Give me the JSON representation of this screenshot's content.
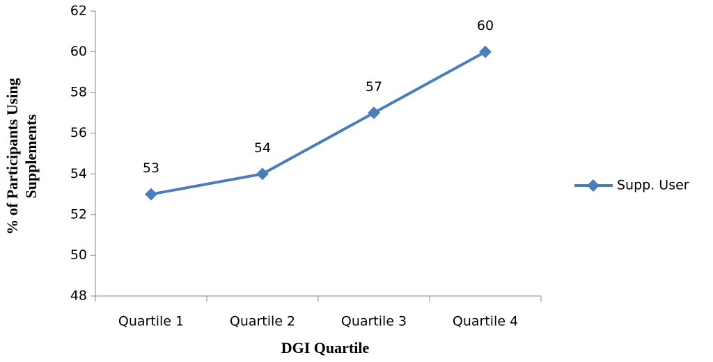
{
  "chart_data": {
    "type": "line",
    "categories": [
      "Quartile 1",
      "Quartile 2",
      "Quartile 3",
      "Quartile 4"
    ],
    "series": [
      {
        "name": "Supp. User",
        "color": "#4a7ebb",
        "values": [
          53,
          54,
          57,
          60
        ]
      }
    ],
    "ylim": [
      48,
      62
    ],
    "yticks": [
      48,
      50,
      52,
      54,
      56,
      58,
      60,
      62
    ],
    "xlabel": "DGI Quartile",
    "ylabel": [
      "% of Participants Using",
      "Supplements"
    ],
    "legend": "right",
    "grid": false
  }
}
